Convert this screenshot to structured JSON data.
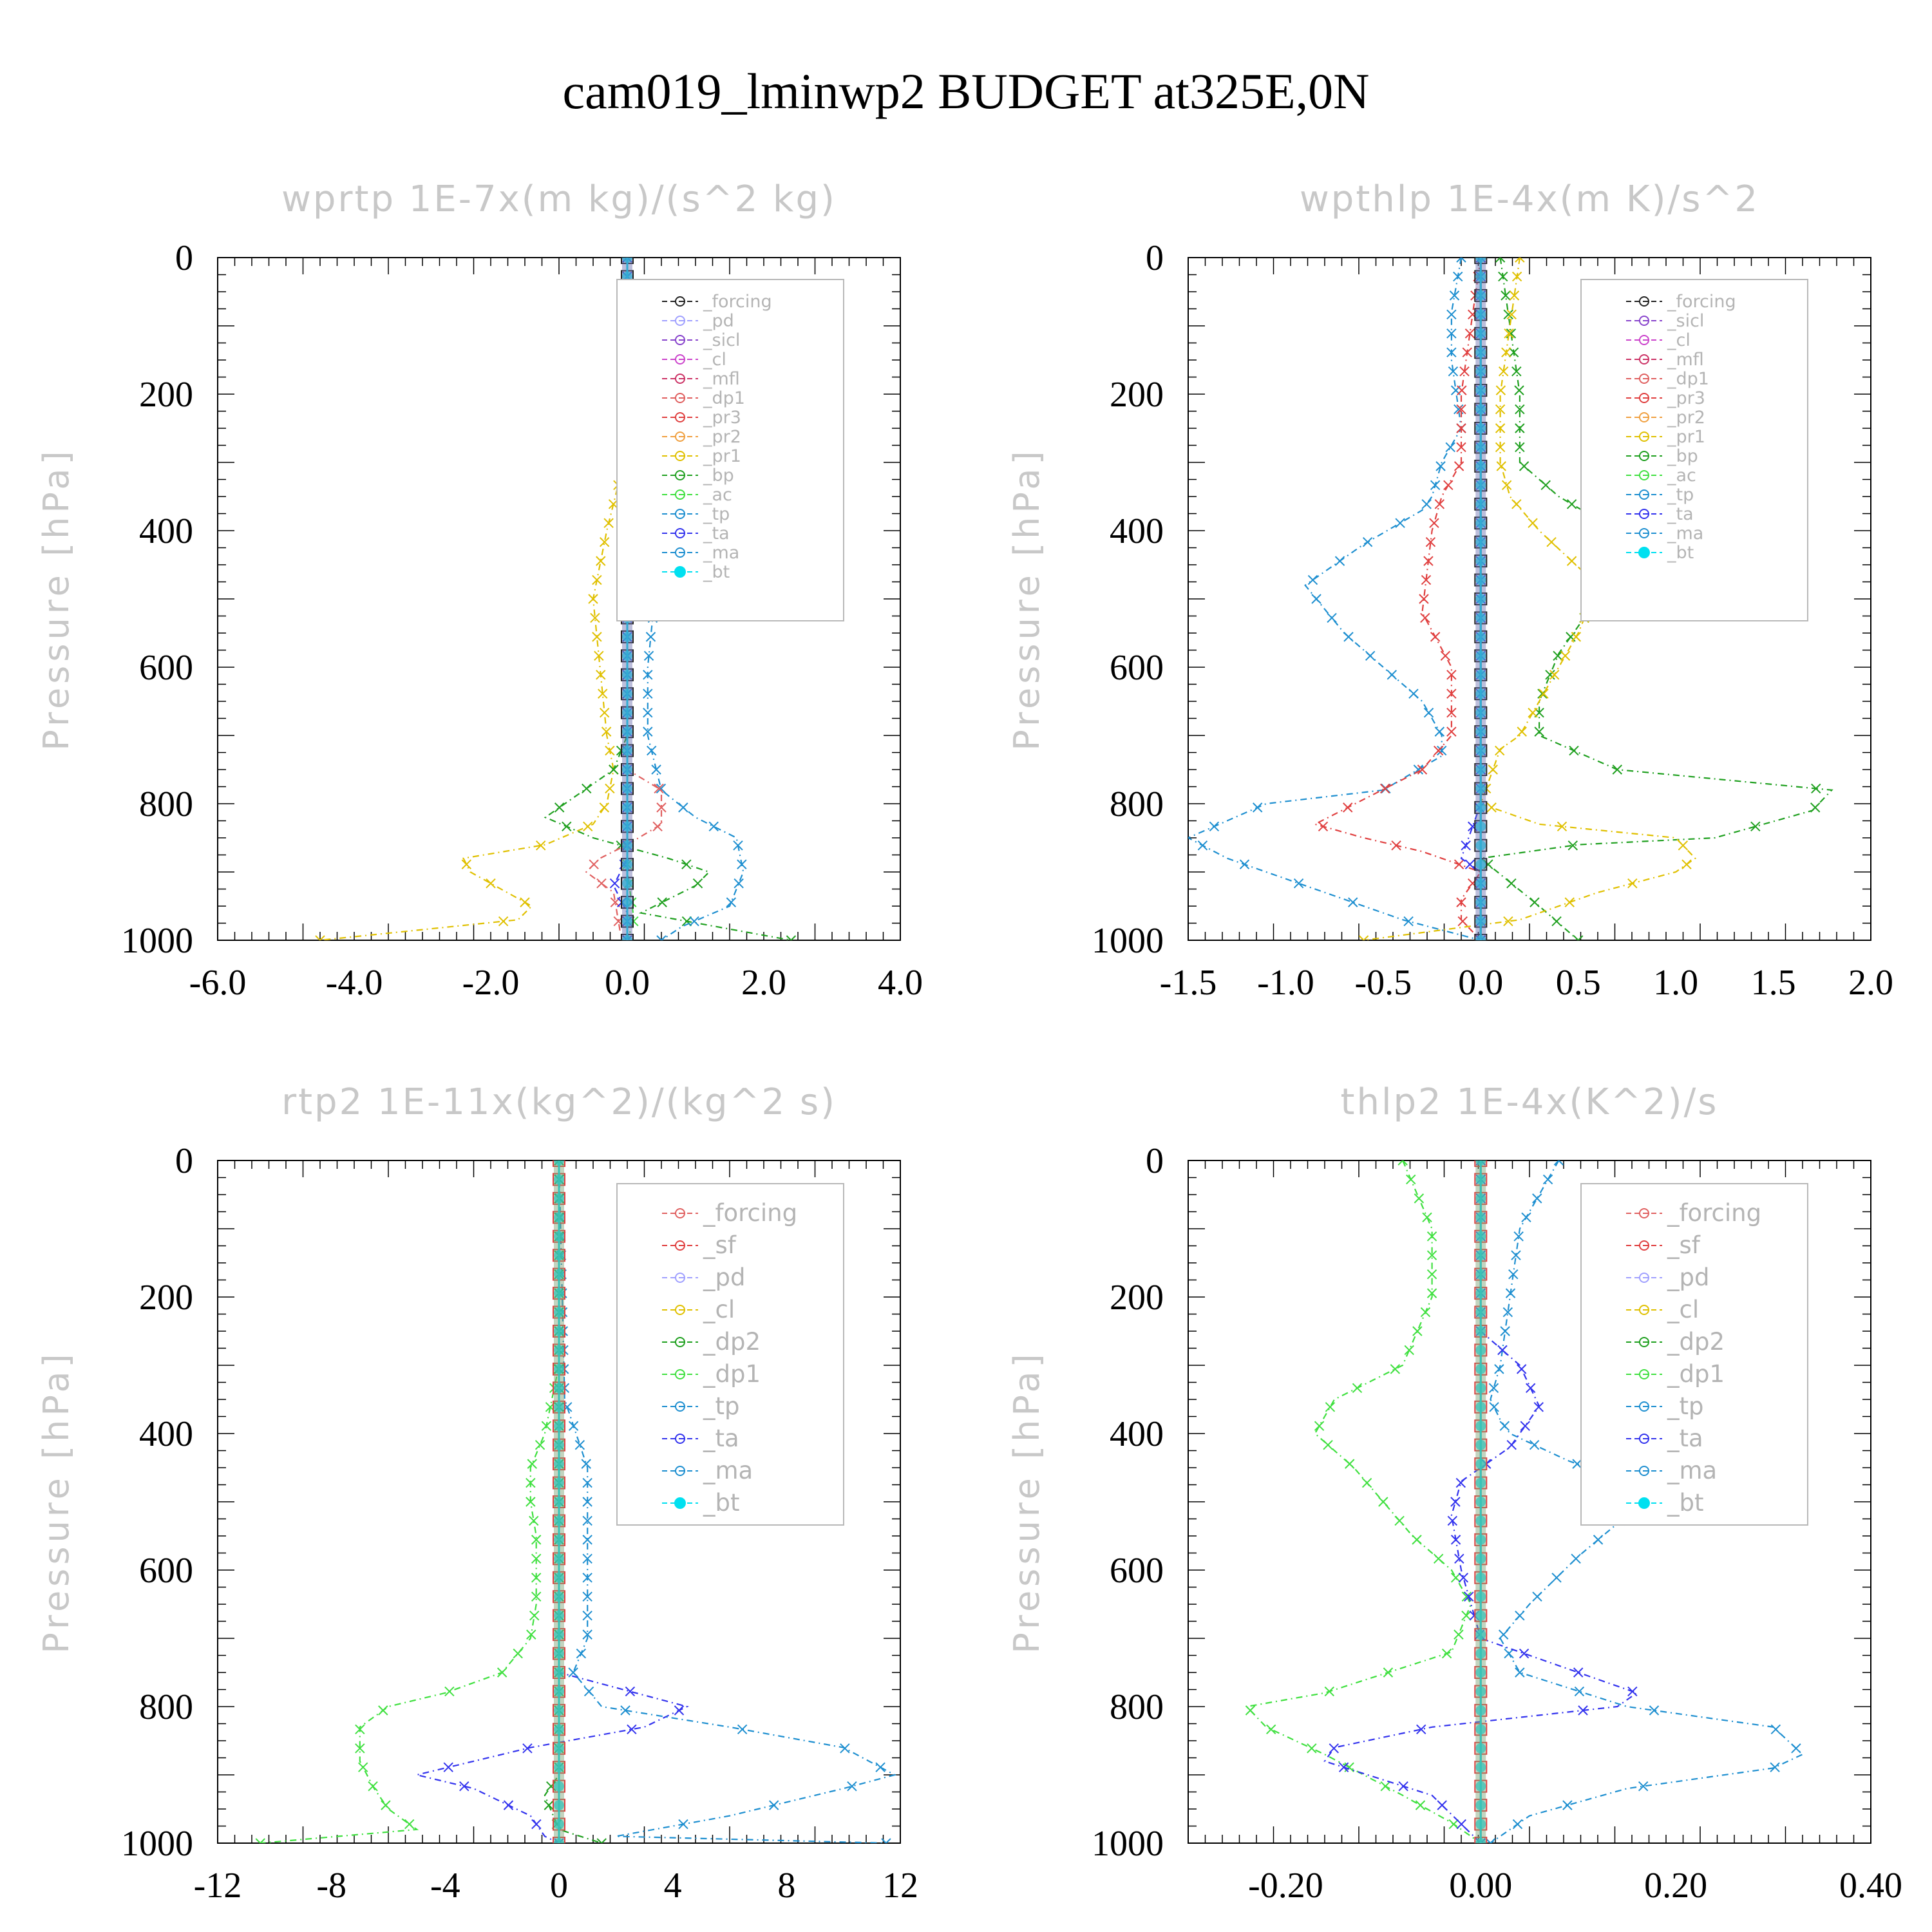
{
  "title": "cam019_lminwp2  BUDGET at325E,0N",
  "colors": {
    "forcing": "#222222",
    "pd": "#a0a0ff",
    "sicl": "#8844cc",
    "cl": "#cc44cc",
    "mfl": "#cc3366",
    "dp1": "#e06060",
    "pr3": "#e04040",
    "pr2": "#f0a040",
    "pr1": "#e0c000",
    "bp": "#20a020",
    "ac": "#40e040",
    "tp": "#1e8fd0",
    "ta": "#3333ee",
    "ma": "#1e8fd0",
    "bt": "#00e0f0",
    "sf": "#e04040",
    "dp2": "#20a020",
    "axis": "#000000",
    "gray_text": "#c8c8c8"
  },
  "chart_data": [
    {
      "type": "line",
      "title": "wprtp  1E-7x(m kg)/(s^2 kg)",
      "ylabel": "Pressure [hPa]",
      "xlabel": "",
      "xlim": [
        -6.0,
        4.0
      ],
      "ylim": [
        1000,
        0
      ],
      "xticks": [
        -6.0,
        -4.0,
        -2.0,
        0.0,
        2.0,
        4.0
      ],
      "xtick_labels": [
        "-6.0",
        "-4.0",
        "-2.0",
        "0.0",
        "2.0",
        "4.0"
      ],
      "yticks": [
        0,
        200,
        400,
        600,
        800,
        1000
      ],
      "ytick_labels": [
        "0",
        "200",
        "400",
        "600",
        "800",
        "1000"
      ],
      "legend": [
        "_forcing",
        "_pd",
        "_sicl",
        "_cl",
        "_mfl",
        "_dp1",
        "_pr3",
        "_pr2",
        "_pr1",
        "_bp",
        "_ac",
        "_tp",
        "_ta",
        "_ma",
        "_bt"
      ],
      "series": [
        {
          "name": "_pr1",
          "color": "pr1",
          "x": [
            0.0,
            0.0,
            0.0,
            -0.05,
            -0.3,
            -0.5,
            -0.4,
            -0.3,
            -0.2,
            -0.3,
            -0.5,
            -1.2,
            -2.4,
            -2.3,
            -1.4,
            -1.6,
            -4.5
          ],
          "y": [
            0,
            100,
            200,
            300,
            400,
            500,
            600,
            700,
            750,
            800,
            830,
            860,
            880,
            900,
            950,
            970,
            1000
          ]
        },
        {
          "name": "_bp",
          "color": "bp",
          "x": [
            0.0,
            0.0,
            0.0,
            0.0,
            0.0,
            -0.2,
            -1.2,
            -0.5,
            0.6,
            1.2,
            1.0,
            0.2,
            2.4
          ],
          "y": [
            0,
            200,
            400,
            600,
            700,
            750,
            820,
            850,
            880,
            900,
            920,
            960,
            1000
          ]
        },
        {
          "name": "_tp",
          "color": "tp",
          "x": [
            0.0,
            0.0,
            0.05,
            0.3,
            0.4,
            0.3,
            0.3,
            0.5,
            1.0,
            1.6,
            1.7,
            1.5,
            0.8,
            0.5
          ],
          "y": [
            0,
            200,
            350,
            450,
            500,
            600,
            700,
            780,
            820,
            850,
            900,
            950,
            980,
            1000
          ]
        },
        {
          "name": "_dp1",
          "color": "dp1",
          "x": [
            0.0,
            0.0,
            0.0,
            0.5,
            0.5,
            0.0,
            -0.4,
            -0.6,
            -0.2,
            -0.1,
            0.0
          ],
          "y": [
            0,
            600,
            750,
            780,
            830,
            860,
            880,
            900,
            930,
            990,
            1000
          ]
        },
        {
          "name": "_ac",
          "color": "ac",
          "x": [
            0.0,
            0.0,
            0.1,
            0.0
          ],
          "y": [
            0,
            900,
            970,
            1000
          ]
        },
        {
          "name": "_ta",
          "color": "ta",
          "x": [
            0.0,
            0.0,
            -0.2,
            0.0,
            0.0
          ],
          "y": [
            0,
            880,
            920,
            960,
            1000
          ]
        },
        {
          "name": "_pd",
          "color": "pd",
          "x": [
            0.0,
            0.0
          ],
          "y": [
            0,
            1000
          ]
        },
        {
          "name": "_forcing",
          "color": "forcing",
          "x": [
            0.0,
            0.0
          ],
          "y": [
            0,
            1000
          ]
        },
        {
          "name": "_bt",
          "color": "bt",
          "x": [
            0.0,
            0.0
          ],
          "y": [
            0,
            1000
          ]
        }
      ]
    },
    {
      "type": "line",
      "title": "wpthlp  1E-4x(m K)/s^2",
      "ylabel": "Pressure [hPa]",
      "xlabel": "",
      "xlim": [
        -1.5,
        2.0
      ],
      "ylim": [
        1000,
        0
      ],
      "xticks": [
        -1.5,
        -1.0,
        -0.5,
        0.0,
        0.5,
        1.0,
        1.5,
        2.0
      ],
      "xtick_labels": [
        "-1.5",
        "-1.0",
        "-0.5",
        "0.0",
        "0.5",
        "1.0",
        "1.5",
        "2.0"
      ],
      "yticks": [
        0,
        200,
        400,
        600,
        800,
        1000
      ],
      "ytick_labels": [
        "0",
        "200",
        "400",
        "600",
        "800",
        "1000"
      ],
      "legend": [
        "_forcing",
        "_sicl",
        "_cl",
        "_mfl",
        "_dp1",
        "_pr3",
        "_pr2",
        "_pr1",
        "_bp",
        "_ac",
        "_tp",
        "_ta",
        "_ma",
        "_bt"
      ],
      "series": [
        {
          "name": "_tp",
          "color": "tp",
          "x": [
            -0.1,
            -0.15,
            -0.15,
            -0.1,
            -0.2,
            -0.25,
            -0.3,
            -0.6,
            -0.9,
            -0.7,
            -0.5,
            -0.3,
            -0.2,
            -0.2,
            -0.5,
            -1.1,
            -1.5,
            -1.3,
            -0.8,
            -0.4,
            0.0
          ],
          "y": [
            0,
            80,
            150,
            250,
            300,
            350,
            370,
            420,
            480,
            550,
            600,
            650,
            700,
            730,
            780,
            800,
            850,
            880,
            930,
            970,
            1000
          ]
        },
        {
          "name": "_pr3",
          "color": "pr3",
          "x": [
            0.0,
            -0.05,
            -0.1,
            -0.1,
            -0.2,
            -0.25,
            -0.3,
            -0.15,
            -0.15,
            -0.3,
            -0.85,
            -0.6,
            -0.3,
            0.0,
            -0.1,
            -0.1,
            0.0
          ],
          "y": [
            0,
            100,
            200,
            300,
            350,
            400,
            520,
            600,
            700,
            750,
            830,
            850,
            870,
            900,
            940,
            970,
            1000
          ]
        },
        {
          "name": "_bp",
          "color": "bp",
          "x": [
            0.1,
            0.15,
            0.2,
            0.2,
            0.4,
            0.7,
            0.8,
            0.6,
            0.4,
            0.3,
            0.3,
            0.7,
            1.8,
            1.7,
            1.2,
            0.5,
            0.0,
            0.3,
            0.5
          ],
          "y": [
            0,
            100,
            200,
            300,
            350,
            400,
            450,
            500,
            580,
            650,
            700,
            750,
            780,
            810,
            850,
            860,
            880,
            950,
            1000
          ]
        },
        {
          "name": "_pr1",
          "color": "pr1",
          "x": [
            0.2,
            0.15,
            0.1,
            0.1,
            0.15,
            0.3,
            0.6,
            0.5,
            0.3,
            0.2,
            0.1,
            0.0,
            0.3,
            1.0,
            1.1,
            1.0,
            0.6,
            0.2,
            -0.6
          ],
          "y": [
            0,
            100,
            200,
            300,
            350,
            400,
            480,
            550,
            650,
            700,
            720,
            800,
            830,
            850,
            880,
            900,
            930,
            970,
            1000
          ]
        },
        {
          "name": "_ta",
          "color": "ta",
          "x": [
            0.0,
            0.0,
            -0.1,
            0.0,
            0.0
          ],
          "y": [
            0,
            800,
            880,
            900,
            1000
          ]
        },
        {
          "name": "_forcing",
          "color": "forcing",
          "x": [
            0.0,
            0.0
          ],
          "y": [
            0,
            1000
          ]
        },
        {
          "name": "_bt",
          "color": "bt",
          "x": [
            0.0,
            0.0
          ],
          "y": [
            0,
            1000
          ]
        }
      ]
    },
    {
      "type": "line",
      "title": "rtp2  1E-11x(kg^2)/(kg^2 s)",
      "ylabel": "Pressure [hPa]",
      "xlabel": "",
      "xlim": [
        -12,
        12
      ],
      "ylim": [
        1000,
        0
      ],
      "xticks": [
        -12,
        -8,
        -4,
        0,
        4,
        8,
        12
      ],
      "xtick_labels": [
        "-12",
        "-8",
        "-4",
        "0",
        "4",
        "8",
        "12"
      ],
      "yticks": [
        0,
        200,
        400,
        600,
        800,
        1000
      ],
      "ytick_labels": [
        "0",
        "200",
        "400",
        "600",
        "800",
        "1000"
      ],
      "legend": [
        "_forcing",
        "_sf",
        "_pd",
        "_cl",
        "_dp2",
        "_dp1",
        "_tp",
        "_ta",
        "_ma",
        "_bt"
      ],
      "series": [
        {
          "name": "_dp1",
          "color": "ac",
          "x": [
            0.0,
            0.0,
            -0.5,
            -1.0,
            -1.0,
            -0.8,
            -0.8,
            -1.0,
            -2.0,
            -4.0,
            -6.0,
            -7.0,
            -7.0,
            -6.5,
            -6.0,
            -5.0,
            -10.5
          ],
          "y": [
            0,
            300,
            400,
            450,
            500,
            550,
            650,
            700,
            750,
            780,
            800,
            830,
            880,
            920,
            950,
            980,
            1000
          ]
        },
        {
          "name": "_ta",
          "color": "ta",
          "x": [
            0.0,
            0.0,
            0.0,
            4.5,
            3.0,
            -1.0,
            -5.0,
            -3.0,
            -1.0,
            -0.5,
            0.0
          ],
          "y": [
            0,
            600,
            750,
            800,
            830,
            860,
            900,
            920,
            960,
            990,
            1000
          ]
        },
        {
          "name": "_tp",
          "color": "tp",
          "x": [
            0.0,
            0.2,
            1.0,
            1.0,
            1.0,
            1.0,
            1.0,
            0.5,
            1.5,
            6.0,
            10.0,
            11.8,
            10.0,
            6.0,
            2.0,
            11.5
          ],
          "y": [
            0,
            350,
            450,
            500,
            550,
            650,
            700,
            750,
            800,
            830,
            860,
            900,
            920,
            960,
            990,
            1000
          ]
        },
        {
          "name": "_dp2",
          "color": "dp2",
          "x": [
            0.0,
            0.0,
            -0.5,
            0.0,
            1.5
          ],
          "y": [
            0,
            900,
            930,
            980,
            1000
          ]
        },
        {
          "name": "_forcing",
          "color": "sf",
          "x": [
            0.0,
            0.0
          ],
          "y": [
            0,
            1000
          ]
        },
        {
          "name": "_bt",
          "color": "bt",
          "x": [
            0.0,
            0.0
          ],
          "y": [
            0,
            1000
          ]
        }
      ]
    },
    {
      "type": "line",
      "title": "thlp2  1E-4x(K^2)/s",
      "ylabel": "Pressure [hPa]",
      "xlabel": "",
      "xlim": [
        -0.3,
        0.4
      ],
      "ylim": [
        1000,
        0
      ],
      "xticks": [
        -0.2,
        0.0,
        0.2,
        0.4
      ],
      "xtick_labels": [
        "-0.20",
        "0.00",
        "0.20",
        "0.40"
      ],
      "yticks": [
        0,
        200,
        400,
        600,
        800,
        1000
      ],
      "ytick_labels": [
        "0",
        "200",
        "400",
        "600",
        "800",
        "1000"
      ],
      "legend": [
        "_forcing",
        "_sf",
        "_pd",
        "_cl",
        "_dp2",
        "_dp1",
        "_tp",
        "_ta",
        "_ma",
        "_bt"
      ],
      "series": [
        {
          "name": "_dp1",
          "color": "ac",
          "x": [
            -0.08,
            -0.05,
            -0.05,
            -0.08,
            -0.15,
            -0.17,
            -0.13,
            -0.07,
            -0.03,
            -0.01,
            -0.03,
            -0.16,
            -0.24,
            -0.22,
            -0.16,
            -0.08,
            -0.03,
            0.0
          ],
          "y": [
            0,
            100,
            200,
            300,
            350,
            400,
            450,
            550,
            600,
            650,
            720,
            780,
            800,
            830,
            870,
            930,
            970,
            1000
          ]
        },
        {
          "name": "_tp",
          "color": "tp",
          "x": [
            0.08,
            0.04,
            0.03,
            0.02,
            0.01,
            0.02,
            0.03,
            0.09,
            0.17,
            0.15,
            0.1,
            0.05,
            0.02,
            0.04,
            0.15,
            0.3,
            0.33,
            0.3,
            0.15,
            0.05,
            0.01
          ],
          "y": [
            0,
            100,
            200,
            300,
            350,
            380,
            400,
            440,
            480,
            520,
            580,
            650,
            700,
            750,
            800,
            830,
            870,
            890,
            920,
            960,
            1000
          ]
        },
        {
          "name": "_ta",
          "color": "ta",
          "x": [
            0.0,
            0.0,
            0.04,
            0.06,
            0.03,
            -0.02,
            -0.03,
            -0.02,
            0.0,
            0.1,
            0.16,
            0.14,
            -0.05,
            -0.15,
            -0.16,
            -0.05,
            0.0
          ],
          "y": [
            0,
            250,
            300,
            360,
            420,
            470,
            520,
            600,
            700,
            750,
            780,
            800,
            830,
            860,
            880,
            930,
            1000
          ]
        },
        {
          "name": "_forcing",
          "color": "sf",
          "x": [
            0.0,
            0.0
          ],
          "y": [
            0,
            1000
          ]
        },
        {
          "name": "_bt",
          "color": "bt",
          "x": [
            0.0,
            0.0
          ],
          "y": [
            0,
            1000
          ]
        }
      ]
    }
  ]
}
